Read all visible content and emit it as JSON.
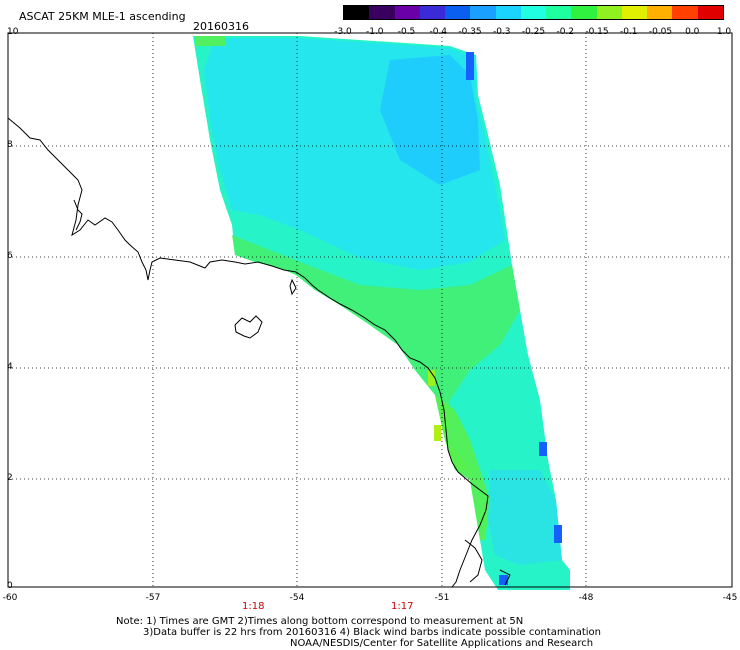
{
  "header": {
    "title": "ASCAT 25KM MLE-1 ascending",
    "date": "20160316"
  },
  "colorbar": {
    "labels": [
      "-3.0",
      "-1.0",
      "-0.5",
      "-0.4",
      "-0.35",
      "-0.3",
      "-0.25",
      "-0.2",
      "-0.15",
      "-0.1",
      "-0.05",
      "0.0",
      "1.0"
    ],
    "colors": [
      "#000000",
      "#3a0060",
      "#6a00a8",
      "#3a2ad8",
      "#0a5ef0",
      "#1aa0ff",
      "#1ad4ff",
      "#20ffe0",
      "#20ffa0",
      "#30f040",
      "#90f020",
      "#e0f000",
      "#ffb000",
      "#ff4000",
      "#e00000"
    ]
  },
  "axes": {
    "x_ticks": [
      "-60",
      "-57",
      "-54",
      "-51",
      "-48",
      "-45"
    ],
    "y_ticks": [
      "10",
      "8",
      "6",
      "4",
      "2",
      "0"
    ],
    "xlim": [
      -60,
      -45
    ],
    "ylim": [
      0,
      10
    ]
  },
  "times": [
    "1:18",
    "1:17"
  ],
  "notes": {
    "line1": "Note: 1) Times are GMT 2)Times along bottom correspond to measurement at 5N",
    "line2": "3)Data buffer is 22 hrs from 20160316 4) Black wind barbs indicate possible contamination",
    "line3": "NOAA/NESDIS/Center for Satellite Applications and Research"
  }
}
